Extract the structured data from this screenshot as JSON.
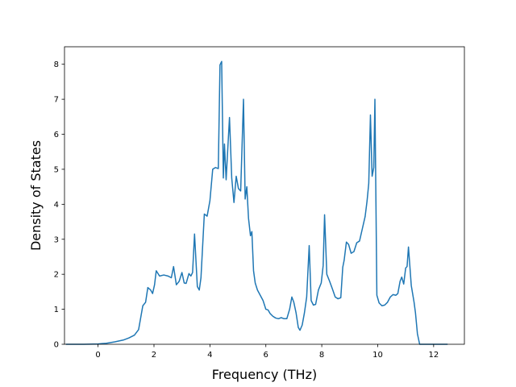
{
  "chart_data": {
    "type": "line",
    "title": "",
    "xlabel": "Frequency (THz)",
    "ylabel": "Density of States",
    "xlim": [
      -1.2,
      13.1
    ],
    "ylim": [
      0,
      8.5
    ],
    "xticks": [
      0,
      2,
      4,
      6,
      8,
      10,
      12
    ],
    "yticks": [
      0,
      1,
      2,
      3,
      4,
      5,
      6,
      7,
      8
    ],
    "grid": false,
    "legend": "none",
    "series": [
      {
        "color": "#1f77b4",
        "x": [
          -1.15,
          -0.5,
          0.0,
          0.3,
          0.6,
          0.9,
          1.1,
          1.3,
          1.45,
          1.6,
          1.7,
          1.78,
          1.88,
          1.95,
          2.02,
          2.08,
          2.2,
          2.35,
          2.5,
          2.62,
          2.7,
          2.8,
          2.9,
          3.0,
          3.08,
          3.15,
          3.25,
          3.32,
          3.38,
          3.45,
          3.55,
          3.62,
          3.68,
          3.8,
          3.9,
          4.0,
          4.1,
          4.2,
          4.3,
          4.36,
          4.42,
          4.48,
          4.52,
          4.58,
          4.64,
          4.7,
          4.78,
          4.86,
          4.94,
          5.02,
          5.1,
          5.16,
          5.2,
          5.26,
          5.32,
          5.38,
          5.45,
          5.5,
          5.56,
          5.62,
          5.7,
          5.8,
          5.9,
          6.0,
          6.08,
          6.15,
          6.25,
          6.35,
          6.45,
          6.55,
          6.65,
          6.75,
          6.85,
          6.93,
          7.0,
          7.08,
          7.16,
          7.22,
          7.3,
          7.38,
          7.46,
          7.55,
          7.62,
          7.7,
          7.78,
          7.88,
          7.98,
          8.05,
          8.1,
          8.18,
          8.28,
          8.38,
          8.48,
          8.58,
          8.68,
          8.75,
          8.8,
          8.88,
          8.96,
          9.05,
          9.15,
          9.25,
          9.35,
          9.45,
          9.55,
          9.62,
          9.68,
          9.74,
          9.8,
          9.86,
          9.9,
          9.97,
          10.05,
          10.15,
          10.25,
          10.35,
          10.45,
          10.55,
          10.65,
          10.72,
          10.8,
          10.86,
          10.93,
          11.0,
          11.05,
          11.1,
          11.2,
          11.3,
          11.35,
          11.42,
          11.5,
          12.0,
          12.5
        ],
        "y": [
          0.0,
          0.0,
          0.01,
          0.03,
          0.07,
          0.12,
          0.18,
          0.26,
          0.42,
          1.1,
          1.2,
          1.62,
          1.55,
          1.45,
          1.7,
          2.1,
          1.95,
          1.98,
          1.95,
          1.9,
          2.22,
          1.7,
          1.8,
          2.05,
          1.75,
          1.74,
          2.02,
          1.95,
          2.05,
          3.15,
          1.65,
          1.55,
          1.9,
          3.72,
          3.66,
          4.1,
          5.0,
          5.05,
          5.02,
          7.98,
          8.08,
          4.75,
          5.72,
          4.7,
          5.6,
          6.48,
          4.75,
          4.05,
          4.8,
          4.45,
          4.38,
          5.95,
          7.0,
          4.15,
          4.5,
          3.6,
          3.1,
          3.22,
          2.1,
          1.75,
          1.55,
          1.4,
          1.25,
          1.0,
          0.98,
          0.88,
          0.8,
          0.75,
          0.73,
          0.76,
          0.73,
          0.73,
          1.0,
          1.35,
          1.2,
          0.9,
          0.48,
          0.4,
          0.55,
          0.9,
          1.35,
          2.82,
          1.25,
          1.12,
          1.14,
          1.55,
          1.75,
          2.25,
          3.7,
          2.0,
          1.8,
          1.58,
          1.35,
          1.3,
          1.33,
          2.2,
          2.4,
          2.92,
          2.85,
          2.6,
          2.65,
          2.9,
          2.95,
          3.3,
          3.65,
          4.1,
          4.6,
          6.55,
          4.8,
          5.05,
          7.0,
          1.4,
          1.18,
          1.1,
          1.12,
          1.2,
          1.35,
          1.42,
          1.4,
          1.45,
          1.8,
          1.92,
          1.72,
          2.18,
          2.22,
          2.78,
          1.68,
          1.2,
          0.9,
          0.3,
          0.0,
          0.0,
          0.0
        ]
      }
    ]
  }
}
